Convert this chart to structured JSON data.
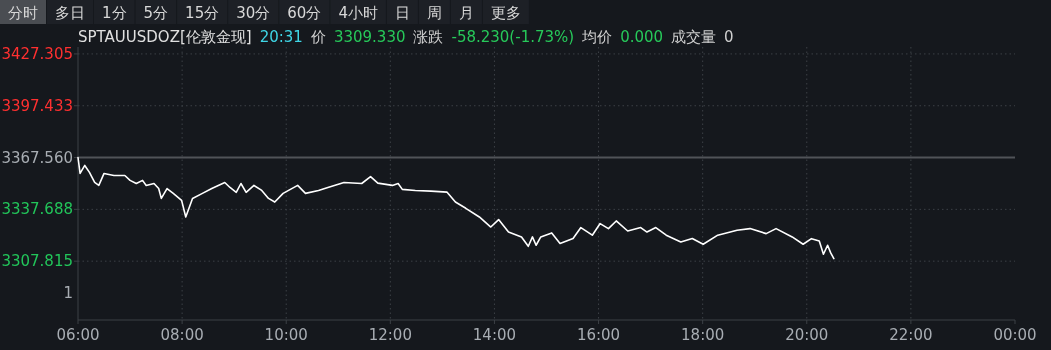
{
  "chart_data": {
    "type": "line",
    "title": "SPTAUUSDOZ[伦敦金现]",
    "annotations": [
      "分时",
      "多日",
      "1分",
      "5分",
      "15分",
      "30分",
      "60分",
      "4小时",
      "日",
      "周",
      "月",
      "更多",
      "20:31",
      "价",
      "3309.330",
      "涨跌",
      "-58.230(-1.73%)",
      "均价",
      "0.000",
      "成交量",
      "0",
      "1"
    ],
    "x": [
      6.0,
      6.04,
      6.13,
      6.22,
      6.32,
      6.4,
      6.5,
      6.69,
      6.9,
      7.0,
      7.12,
      7.24,
      7.31,
      7.46,
      7.55,
      7.6,
      7.71,
      7.83,
      7.99,
      8.07,
      8.2,
      8.39,
      8.57,
      8.82,
      8.92,
      9.04,
      9.13,
      9.23,
      9.38,
      9.53,
      9.66,
      9.78,
      9.94,
      10.22,
      10.37,
      10.62,
      10.8,
      11.11,
      11.45,
      11.62,
      11.76,
      12.04,
      12.15,
      12.23,
      12.48,
      12.78,
      13.09,
      13.25,
      13.45,
      13.71,
      13.93,
      14.08,
      14.27,
      14.52,
      14.65,
      14.73,
      14.8,
      14.89,
      15.1,
      15.26,
      15.51,
      15.66,
      15.88,
      16.03,
      16.19,
      16.34,
      16.56,
      16.81,
      16.93,
      17.1,
      17.3,
      17.58,
      17.8,
      18.01,
      18.29,
      18.66,
      18.91,
      19.22,
      19.41,
      19.72,
      19.93,
      20.09,
      20.24,
      20.32,
      20.4,
      20.46,
      20.52
    ],
    "series": [
      {
        "color": "#ffffff",
        "values": [
          3367.6,
          3358.4,
          3363.0,
          3359.0,
          3353.2,
          3351.5,
          3358.4,
          3357.2,
          3357.2,
          3354.4,
          3352.6,
          3354.4,
          3351.5,
          3352.6,
          3349.7,
          3344.0,
          3349.7,
          3346.9,
          3342.9,
          3333.3,
          3344.0,
          3346.9,
          3349.7,
          3353.2,
          3350.3,
          3347.5,
          3352.6,
          3347.5,
          3351.5,
          3348.6,
          3344.0,
          3341.9,
          3346.9,
          3351.5,
          3346.9,
          3348.6,
          3350.3,
          3353.2,
          3352.6,
          3356.6,
          3352.8,
          3351.5,
          3352.6,
          3349.2,
          3348.6,
          3348.2,
          3347.6,
          3341.9,
          3338.3,
          3333.3,
          3327.5,
          3331.8,
          3324.7,
          3321.8,
          3316.4,
          3321.8,
          3317.0,
          3321.8,
          3324.1,
          3318.0,
          3320.9,
          3327.2,
          3322.8,
          3329.5,
          3326.6,
          3331.0,
          3325.2,
          3327.2,
          3324.6,
          3327.2,
          3322.8,
          3318.9,
          3320.9,
          3317.6,
          3322.8,
          3325.6,
          3326.6,
          3323.7,
          3326.6,
          3321.8,
          3317.6,
          3320.8,
          3319.5,
          3311.8,
          3317.0,
          3312.6,
          3309.3
        ]
      }
    ],
    "xlim": [
      6,
      24
    ],
    "xticks": [
      {
        "value": 6,
        "label": "06:00"
      },
      {
        "value": 8,
        "label": "08:00"
      },
      {
        "value": 10,
        "label": "10:00"
      },
      {
        "value": 12,
        "label": "12:00"
      },
      {
        "value": 14,
        "label": "14:00"
      },
      {
        "value": 16,
        "label": "16:00"
      },
      {
        "value": 18,
        "label": "18:00"
      },
      {
        "value": 20,
        "label": "20:00"
      },
      {
        "value": 22,
        "label": "22:00"
      },
      {
        "value": 24,
        "label": "00:00"
      }
    ],
    "ylim": [
      3273.9,
      3431.3
    ],
    "yticks": [
      {
        "value": 3307.815,
        "label": "3307.815"
      },
      {
        "value": 3337.688,
        "label": "3337.688"
      },
      {
        "value": 3367.56,
        "label": "3367.560"
      },
      {
        "value": 3397.433,
        "label": "3397.433"
      },
      {
        "value": 3427.305,
        "label": "3427.305"
      }
    ],
    "ref_lines": [
      {
        "axis": "y",
        "value": 3367.56,
        "color": "#505358"
      }
    ],
    "grid": true
  }
}
